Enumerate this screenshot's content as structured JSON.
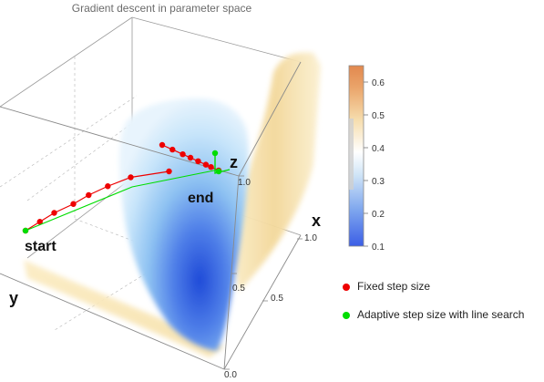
{
  "chart_data": {
    "type": "surface3d",
    "title": "Gradient descent in parameter space",
    "axes": {
      "x": {
        "label": "x",
        "ticks": [
          "0.5",
          "1.0"
        ]
      },
      "y": {
        "label": "y"
      },
      "z": {
        "label": "z",
        "ticks": [
          "0.0",
          "0.5",
          "1.0"
        ]
      }
    },
    "annotations": {
      "start": "start",
      "end": "end"
    },
    "colorbar": {
      "ticks": [
        "0.1",
        "0.2",
        "0.3",
        "0.4",
        "0.5",
        "0.6"
      ],
      "range": [
        0.1,
        0.65
      ],
      "colors": {
        "low": "#3b5ee6",
        "mid": "#ffffff",
        "high": "#e2884e"
      }
    },
    "series": [
      {
        "name": "Fixed step size",
        "color": "#ee0000",
        "path": [
          [
            0.0,
            0.0
          ],
          [
            0.075,
            0.15
          ],
          [
            0.15,
            0.3
          ],
          [
            0.25,
            0.45
          ],
          [
            0.33,
            0.6
          ],
          [
            0.43,
            0.75
          ],
          [
            0.55,
            0.9
          ],
          [
            0.75,
            1.0
          ]
        ],
        "tail": [
          [
            0.78,
            1.0
          ],
          [
            0.82,
            0.99
          ],
          [
            0.86,
            0.98
          ],
          [
            0.89,
            0.97
          ],
          [
            0.92,
            0.96
          ],
          [
            0.95,
            0.95
          ],
          [
            0.97,
            0.94
          ],
          [
            1.0,
            0.93
          ]
        ]
      },
      {
        "name": "Adaptive step size with line search",
        "color": "#00dd00",
        "path": [
          [
            0.0,
            0.0
          ],
          [
            0.5,
            0.55
          ],
          [
            1.0,
            0.93
          ]
        ]
      }
    ]
  }
}
